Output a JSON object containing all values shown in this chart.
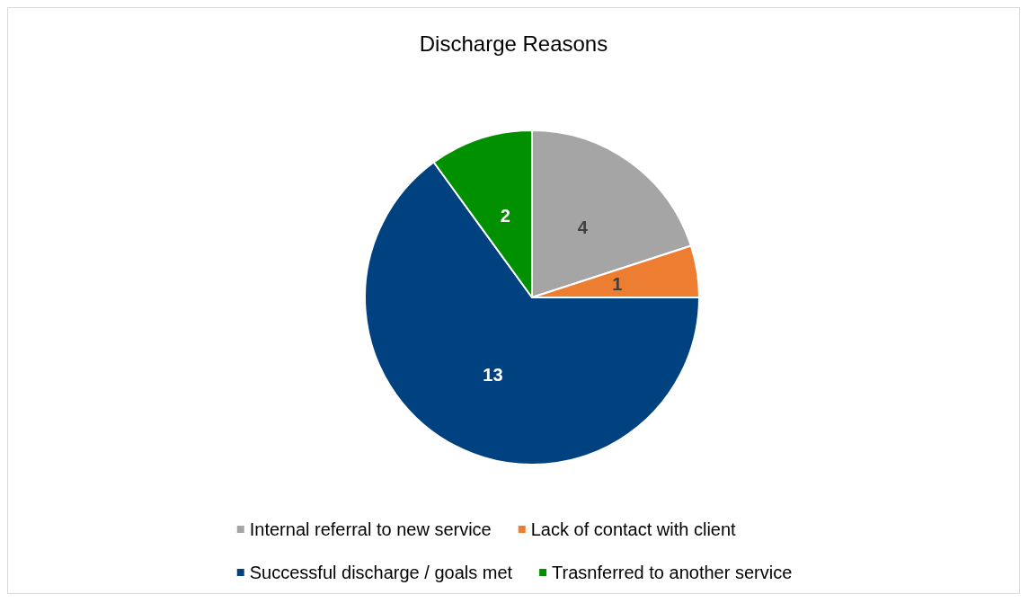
{
  "chart_data": {
    "type": "pie",
    "title": "Discharge Reasons",
    "categories": [
      "Internal referral to new service",
      "Lack of contact with client",
      "Successful discharge / goals met",
      "Trasnferred to another service"
    ],
    "values": [
      4,
      1,
      13,
      2
    ],
    "colors": [
      "#a5a5a5",
      "#ed7d31",
      "#00427f",
      "#009000"
    ],
    "data_labels": true,
    "legend": "bottom"
  }
}
